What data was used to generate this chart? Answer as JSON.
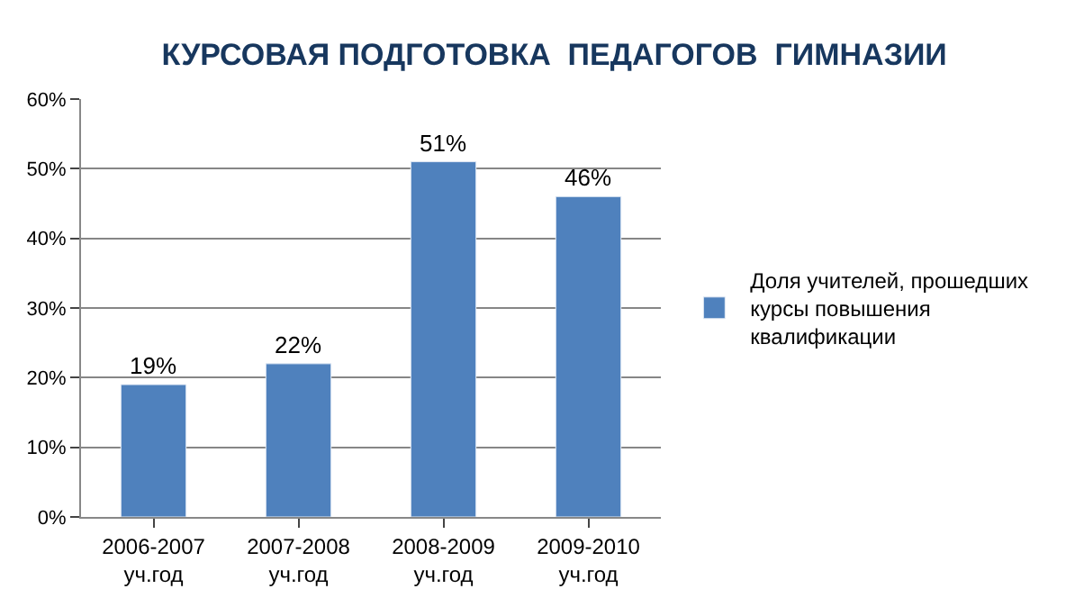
{
  "chart_data": {
    "type": "bar",
    "title": "КУРСОВАЯ ПОДГОТОВКА  ПЕДАГОГОВ  ГИМНАЗИИ",
    "categories": [
      "2006-2007\nуч.год",
      "2007-2008\nуч.год",
      "2008-2009\nуч.год",
      "2009-2010\nуч.год"
    ],
    "series": [
      {
        "name": "Доля учителей, прошедших курсы повышения квалификации",
        "color": "#4f81bd",
        "values": [
          19,
          22,
          51,
          46
        ],
        "value_labels": [
          "19%",
          "22%",
          "51%",
          "46%"
        ]
      }
    ],
    "ylim": [
      0,
      60
    ],
    "yticks": [
      {
        "value": 0,
        "label": "0%"
      },
      {
        "value": 10,
        "label": "10%"
      },
      {
        "value": 20,
        "label": "20%"
      },
      {
        "value": 30,
        "label": "30%"
      },
      {
        "value": 40,
        "label": "40%"
      },
      {
        "value": 50,
        "label": "50%"
      },
      {
        "value": 60,
        "label": "60%"
      }
    ],
    "grid": "y",
    "legend": "right"
  }
}
